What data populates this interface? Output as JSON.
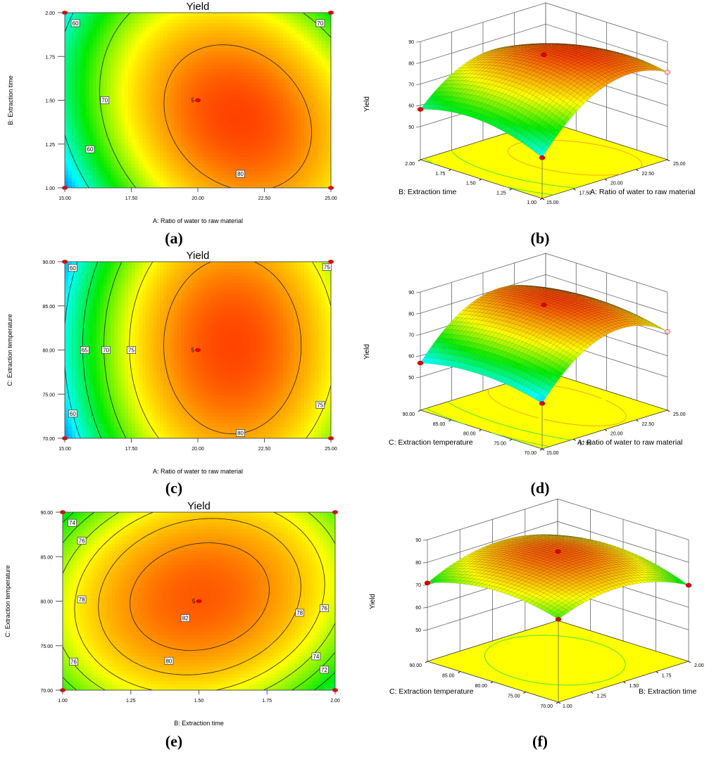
{
  "chart_data": [
    {
      "id": "a",
      "type": "contour",
      "panel_label": "(a)",
      "title": "Yield",
      "xlabel": "A: Ratio of water to raw material",
      "ylabel": "B: Extraction time",
      "xlim": [
        15,
        25
      ],
      "ylim": [
        1,
        2
      ],
      "xticks": [
        "15.00",
        "17.50",
        "20.00",
        "22.50",
        "25.00"
      ],
      "yticks": [
        "1.00",
        "1.25",
        "1.50",
        "1.75",
        "2.00"
      ],
      "contour_levels": [
        60,
        70,
        80
      ],
      "contour_labels": [
        {
          "text": "60",
          "x": 15.4,
          "y": 1.94
        },
        {
          "text": "60",
          "x": 15.95,
          "y": 1.22
        },
        {
          "text": "70",
          "x": 16.5,
          "y": 1.5
        },
        {
          "text": "70",
          "x": 24.6,
          "y": 1.94
        },
        {
          "text": "80",
          "x": 21.6,
          "y": 1.08
        }
      ],
      "design_points": [
        [
          15,
          1
        ],
        [
          15,
          2
        ],
        [
          25,
          1
        ],
        [
          25,
          2
        ],
        [
          20,
          1.5
        ]
      ],
      "center_point_label": "5",
      "color_range": [
        50,
        86
      ]
    },
    {
      "id": "b",
      "type": "surface",
      "panel_label": "(b)",
      "zlabel": "Yield",
      "zticks": [
        "50",
        "60",
        "70",
        "80",
        "90"
      ],
      "zlim": [
        50,
        90
      ],
      "left_axis": {
        "label": "B: Extraction time",
        "ticks": [
          "1.00",
          "1.25",
          "1.50",
          "1.75",
          "2.00"
        ],
        "range": [
          1,
          2
        ]
      },
      "right_axis": {
        "label": "A: Ratio of water to raw material",
        "ticks": [
          "15.00",
          "17.50",
          "20.00",
          "22.50",
          "25.00"
        ],
        "range": [
          15,
          25
        ]
      },
      "floor_levels": [
        60,
        70,
        80
      ],
      "color_range": [
        45,
        86
      ]
    },
    {
      "id": "c",
      "type": "contour",
      "panel_label": "(c)",
      "title": "Yield",
      "xlabel": "A: Ratio of water to raw material",
      "ylabel": "C: Extraction temperature",
      "xlim": [
        15,
        25
      ],
      "ylim": [
        70,
        90
      ],
      "xticks": [
        "15.00",
        "17.50",
        "20.00",
        "22.50",
        "25.00"
      ],
      "yticks": [
        "70.00",
        "75.00",
        "80.00",
        "85.00",
        "90.00"
      ],
      "contour_levels": [
        60,
        65,
        70,
        75,
        80
      ],
      "contour_labels": [
        {
          "text": "60",
          "x": 15.3,
          "y": 89.3
        },
        {
          "text": "60",
          "x": 15.3,
          "y": 72.8
        },
        {
          "text": "65",
          "x": 15.75,
          "y": 80
        },
        {
          "text": "70",
          "x": 16.55,
          "y": 80
        },
        {
          "text": "75",
          "x": 17.5,
          "y": 80
        },
        {
          "text": "75",
          "x": 24.85,
          "y": 89.4
        },
        {
          "text": "75",
          "x": 24.6,
          "y": 73.8
        },
        {
          "text": "80",
          "x": 21.6,
          "y": 70.6
        }
      ],
      "design_points": [
        [
          15,
          70
        ],
        [
          15,
          90
        ],
        [
          25,
          70
        ],
        [
          25,
          90
        ],
        [
          20,
          80
        ]
      ],
      "center_point_label": "5",
      "color_range": [
        52,
        86
      ]
    },
    {
      "id": "d",
      "type": "surface",
      "panel_label": "(d)",
      "zlabel": "Yield",
      "zticks": [
        "50",
        "60",
        "70",
        "80",
        "90"
      ],
      "zlim": [
        50,
        90
      ],
      "left_axis": {
        "label": "C: Extraction temperature",
        "ticks": [
          "70.00",
          "75.00",
          "80.00",
          "85.00",
          "90.00"
        ],
        "range": [
          70,
          90
        ]
      },
      "right_axis": {
        "label": "A: Ratio of water to raw material",
        "ticks": [
          "15.00",
          "17.50",
          "20.00",
          "22.50",
          "25.00"
        ],
        "range": [
          15,
          25
        ]
      },
      "floor_levels": [
        60,
        70,
        80
      ],
      "color_range": [
        50,
        86
      ]
    },
    {
      "id": "e",
      "type": "contour",
      "panel_label": "(e)",
      "title": "Yield",
      "xlabel": "B: Extraction time",
      "ylabel": "C: Extraction temperature",
      "xlim": [
        1,
        2
      ],
      "ylim": [
        70,
        90
      ],
      "xticks": [
        "1.00",
        "1.25",
        "1.50",
        "1.75",
        "2.00"
      ],
      "yticks": [
        "70.00",
        "75.00",
        "80.00",
        "85.00",
        "90.00"
      ],
      "contour_levels": [
        72,
        74,
        76,
        78,
        80,
        82
      ],
      "contour_labels": [
        {
          "text": "74",
          "x": 1.035,
          "y": 88.8
        },
        {
          "text": "76",
          "x": 1.07,
          "y": 86.8
        },
        {
          "text": "78",
          "x": 1.07,
          "y": 80.2
        },
        {
          "text": "76",
          "x": 1.04,
          "y": 73.2
        },
        {
          "text": "80",
          "x": 1.39,
          "y": 73.3
        },
        {
          "text": "82",
          "x": 1.45,
          "y": 78.1
        },
        {
          "text": "78",
          "x": 1.87,
          "y": 78.7
        },
        {
          "text": "76",
          "x": 1.96,
          "y": 79.2
        },
        {
          "text": "74",
          "x": 1.93,
          "y": 73.8
        },
        {
          "text": "72",
          "x": 1.96,
          "y": 72.3
        }
      ],
      "design_points": [
        [
          1,
          70
        ],
        [
          1,
          90
        ],
        [
          2,
          70
        ],
        [
          2,
          90
        ],
        [
          1.5,
          80
        ]
      ],
      "center_point_label": "5",
      "color_range": [
        60,
        86
      ]
    },
    {
      "id": "f",
      "type": "surface",
      "panel_label": "(f)",
      "zlabel": "Yield",
      "zticks": [
        "50",
        "60",
        "70",
        "80",
        "90"
      ],
      "zlim": [
        50,
        90
      ],
      "left_axis": {
        "label": "C: Extraction temperature",
        "ticks": [
          "70.00",
          "75.00",
          "80.00",
          "85.00",
          "90.00"
        ],
        "range": [
          70,
          90
        ]
      },
      "right_axis": {
        "label": "B: Extraction time",
        "ticks": [
          "1.00",
          "1.25",
          "1.50",
          "1.75",
          "2.00"
        ],
        "range": [
          1,
          2
        ]
      },
      "floor_levels": [
        80
      ],
      "color_range": [
        60,
        86
      ]
    }
  ]
}
